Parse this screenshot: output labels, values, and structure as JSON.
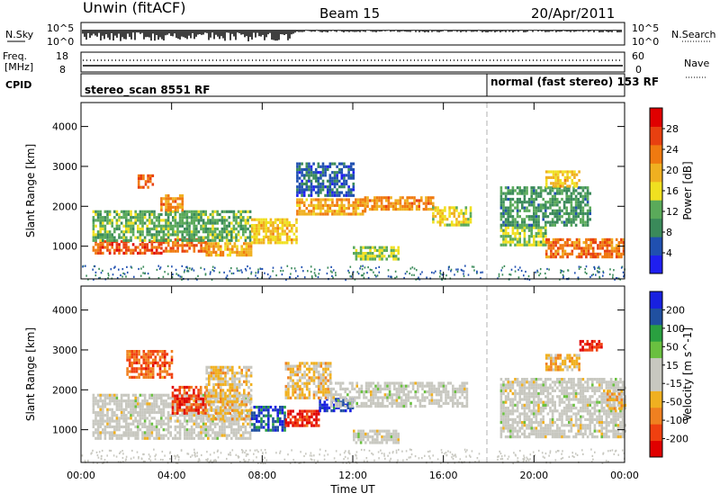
{
  "header": {
    "station": "Unwin (fitACF)",
    "beam": "Beam 15",
    "date": "20/Apr/2011"
  },
  "top_panels": {
    "nsky_label": "N.Sky",
    "nsky_ticks": [
      "10^5",
      "10^0"
    ],
    "nsearch_label": "N.Search",
    "nsearch_ticks": [
      "10^5",
      "10^0"
    ],
    "freq_label_1": "Freq.",
    "freq_label_2": "[MHz]",
    "freq_ticks": [
      "18",
      "8"
    ],
    "nave_label": "Nave",
    "nave_ticks": [
      "60",
      "0"
    ],
    "cpid_label": "CPID",
    "cpid_segments": [
      {
        "label": "stereo_scan 8551 RF",
        "start_hour": 0
      },
      {
        "label": "normal (fast stereo) 153 RF",
        "start_hour": 18.05
      }
    ]
  },
  "colors": {
    "power_scale": [
      "#1f1ff0",
      "#2050b0",
      "#3a8a5a",
      "#5aaa5a",
      "#f0e020",
      "#f0b020",
      "#f07a10",
      "#e84010",
      "#e00000"
    ],
    "velocity_scale": [
      "#e00000",
      "#f04010",
      "#f08020",
      "#f0b020",
      "#c8c8c0",
      "#c8c8c0",
      "#6ac040",
      "#2aa040",
      "#2050a0",
      "#1820e0"
    ],
    "gap_line": "#b0b0b0"
  },
  "chart_data": [
    {
      "type": "heatmap",
      "quantity": "power",
      "ylabel": "Slant Range [km]",
      "ylim": [
        180,
        4600
      ],
      "yticks": [
        "1000",
        "2000",
        "3000",
        "4000"
      ],
      "xlim": [
        0,
        24
      ],
      "colorbar_label": "Power [dB]",
      "colorbar_ticks": [
        "4",
        "8",
        "12",
        "16",
        "20",
        "24",
        "28"
      ],
      "colorbar_range": [
        0,
        32
      ],
      "data_gap_hour": 18.05,
      "echo_bands": [
        {
          "t0": 0.5,
          "t1": 3.5,
          "r0": 800,
          "r1": 1150,
          "level": 26
        },
        {
          "t0": 3.5,
          "t1": 5.5,
          "r0": 850,
          "r1": 1200,
          "level": 24
        },
        {
          "t0": 5.5,
          "t1": 7.5,
          "r0": 800,
          "r1": 1100,
          "level": 20
        },
        {
          "t0": 0.5,
          "t1": 7.5,
          "r0": 1150,
          "r1": 1900,
          "level": 12
        },
        {
          "t0": 2.5,
          "t1": 3.2,
          "r0": 2500,
          "r1": 2800,
          "level": 24
        },
        {
          "t0": 3.5,
          "t1": 4.5,
          "r0": 1900,
          "r1": 2300,
          "level": 22
        },
        {
          "t0": 7.5,
          "t1": 9.5,
          "r0": 1100,
          "r1": 1700,
          "level": 18
        },
        {
          "t0": 9.5,
          "t1": 12.5,
          "r0": 1800,
          "r1": 2200,
          "level": 20
        },
        {
          "t0": 12.5,
          "t1": 15.5,
          "r0": 1950,
          "r1": 2250,
          "level": 22
        },
        {
          "t0": 15.5,
          "t1": 17.2,
          "r0": 1500,
          "r1": 2000,
          "level": 16
        },
        {
          "t0": 9.5,
          "t1": 12.0,
          "r0": 2300,
          "r1": 3100,
          "level": 6
        },
        {
          "t0": 12.0,
          "t1": 14.0,
          "r0": 700,
          "r1": 1000,
          "level": 14
        },
        {
          "t0": 18.5,
          "t1": 20.5,
          "r0": 1000,
          "r1": 1500,
          "level": 14
        },
        {
          "t0": 20.5,
          "t1": 24.0,
          "r0": 750,
          "r1": 1200,
          "level": 24
        },
        {
          "t0": 18.5,
          "t1": 22.5,
          "r0": 1500,
          "r1": 2500,
          "level": 10
        },
        {
          "t0": 20.5,
          "t1": 22.0,
          "r0": 2500,
          "r1": 2900,
          "level": 18
        }
      ]
    },
    {
      "type": "heatmap",
      "quantity": "velocity",
      "ylabel": "Slant Range [km]",
      "ylim": [
        180,
        4600
      ],
      "yticks": [
        "1000",
        "2000",
        "3000",
        "4000"
      ],
      "xlim": [
        0,
        24
      ],
      "xticks": [
        "00:00",
        "04:00",
        "08:00",
        "12:00",
        "16:00",
        "20:00",
        "00:00"
      ],
      "xlabel": "Time UT",
      "colorbar_label": "Velocity [m s^-1]",
      "colorbar_ticks": [
        "200",
        "100",
        "50",
        "15",
        "-15",
        "-50",
        "-100",
        "-200"
      ],
      "colorbar_range": [
        -250,
        250
      ],
      "data_gap_hour": 18.05,
      "echo_bands": [
        {
          "t0": 0.5,
          "t1": 7.5,
          "r0": 800,
          "r1": 1900,
          "level": 0
        },
        {
          "t0": 2.0,
          "t1": 4.0,
          "r0": 2300,
          "r1": 3000,
          "level": -150
        },
        {
          "t0": 4.0,
          "t1": 5.5,
          "r0": 1400,
          "r1": 2100,
          "level": -180
        },
        {
          "t0": 5.5,
          "t1": 7.5,
          "r0": 1300,
          "r1": 2600,
          "level": -60
        },
        {
          "t0": 7.5,
          "t1": 9.0,
          "r0": 1000,
          "r1": 1600,
          "level": 180
        },
        {
          "t0": 9.0,
          "t1": 10.5,
          "r0": 1100,
          "r1": 1500,
          "level": -200
        },
        {
          "t0": 10.5,
          "t1": 12.0,
          "r0": 1500,
          "r1": 1800,
          "level": 200
        },
        {
          "t0": 9.0,
          "t1": 11.0,
          "r0": 1800,
          "r1": 2700,
          "level": -60
        },
        {
          "t0": 11.0,
          "t1": 17.0,
          "r0": 1600,
          "r1": 2200,
          "level": 0
        },
        {
          "t0": 12.0,
          "t1": 14.0,
          "r0": 700,
          "r1": 1000,
          "level": 0
        },
        {
          "t0": 18.5,
          "t1": 24.0,
          "r0": 800,
          "r1": 2300,
          "level": 0
        },
        {
          "t0": 20.5,
          "t1": 22.0,
          "r0": 2500,
          "r1": 2900,
          "level": -80
        },
        {
          "t0": 22.0,
          "t1": 23.0,
          "r0": 3000,
          "r1": 3250,
          "level": -200
        },
        {
          "t0": 23.2,
          "t1": 24.0,
          "r0": 1500,
          "r1": 2000,
          "level": -60
        }
      ]
    }
  ]
}
